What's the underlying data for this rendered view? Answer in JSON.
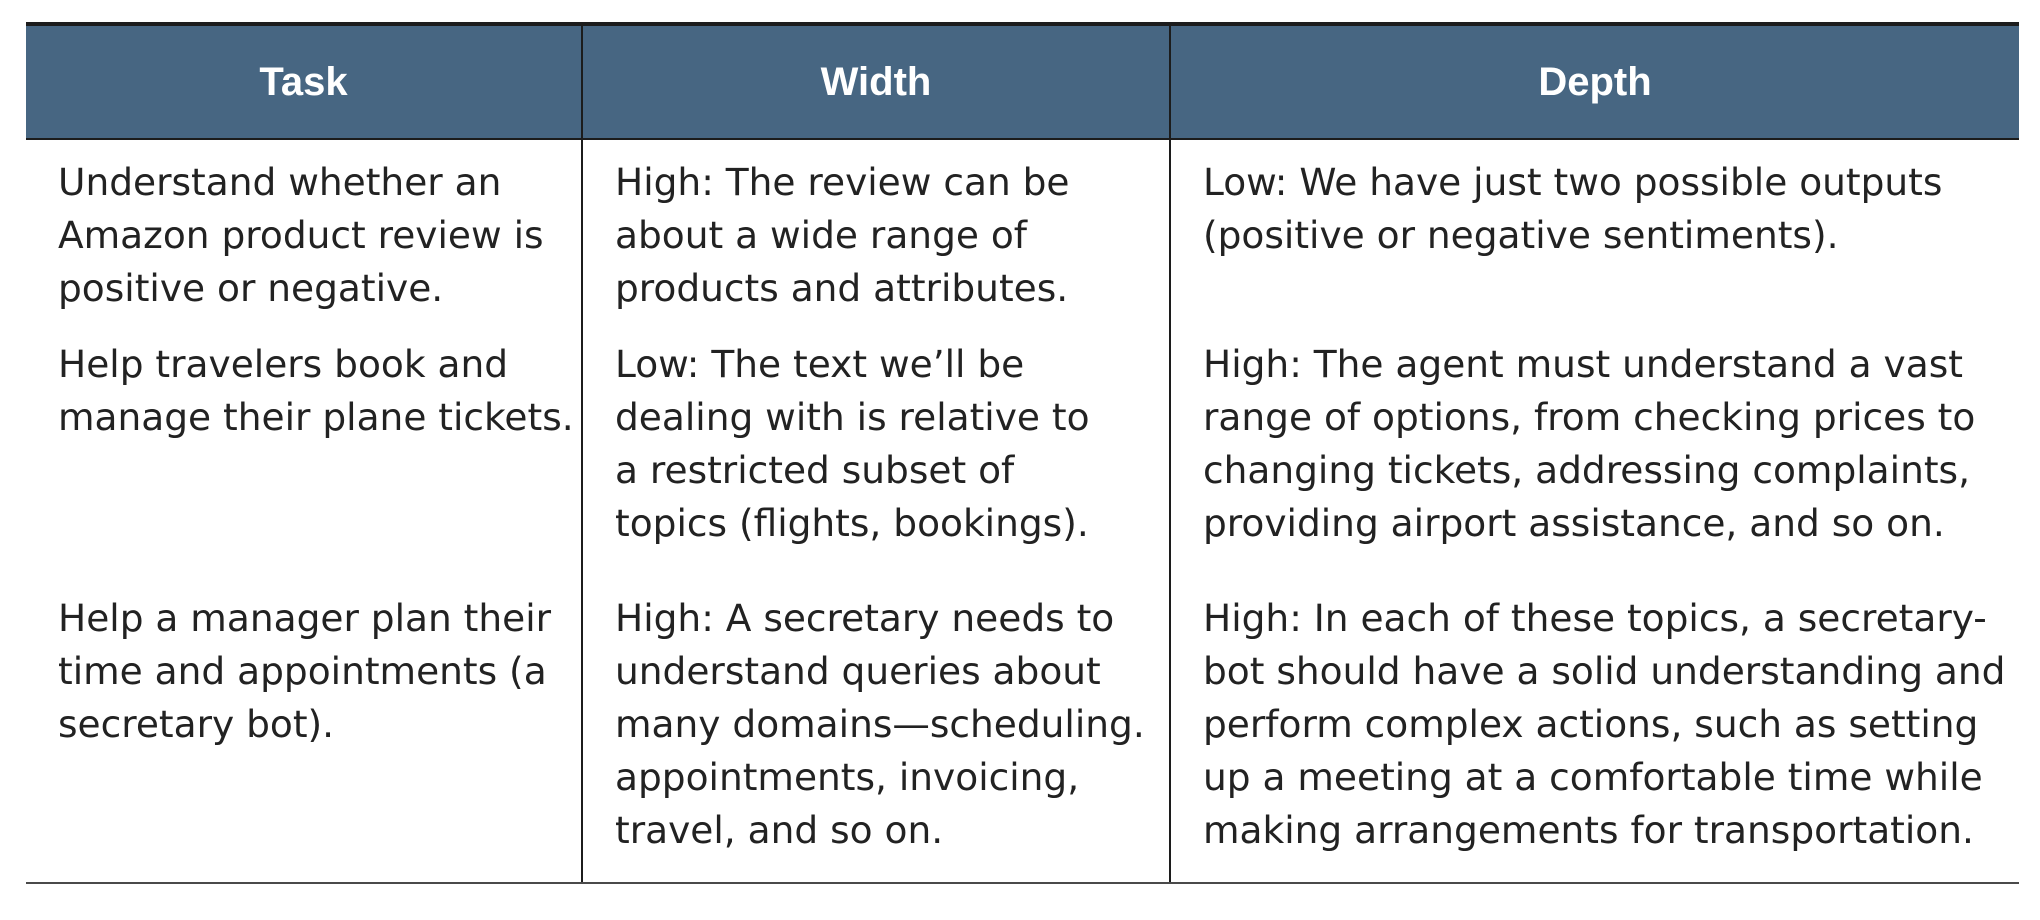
{
  "table": {
    "headers": [
      "Task",
      "Width",
      "Depth"
    ],
    "rows": [
      {
        "task": "Understand whether an\nAmazon product review is\npositive or negative.",
        "width": "High: The review can be\nabout a wide range of\nproducts and attributes.",
        "depth": "Low: We have just two possible outputs\n(positive or negative sentiments)."
      },
      {
        "task": "Help travelers book and\nmanage their plane tickets.",
        "width": "Low: The text we’ll be\ndealing with is relative to\na restricted subset of\ntopics (flights, bookings).",
        "depth": "High: The agent must understand a vast\nrange of options, from checking prices to\nchanging tickets, addressing complaints,\nproviding airport assistance, and so on."
      },
      {
        "task": "Help a manager plan their\ntime and appointments (a\nsecretary bot).",
        "width": "High: A secretary needs to\nunderstand queries about\nmany domains—scheduling.\nappointments, invoicing,\ntravel, and so on.",
        "depth": "High: In each of these topics, a secretary-\nbot should have a solid understanding and\nperform complex actions, such as setting\nup a meeting at a comfortable time while\nmaking arrangements for transportation."
      }
    ]
  },
  "colors": {
    "header_background": "#476682",
    "header_text": "#ffffff",
    "body_text": "#222222",
    "rule": "#1c1c1c"
  }
}
